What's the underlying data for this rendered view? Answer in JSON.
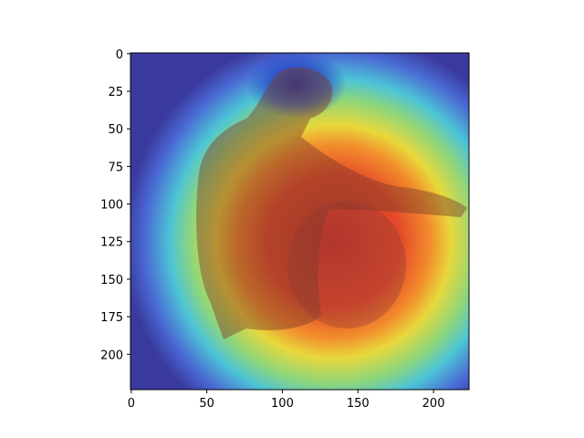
{
  "figure": {
    "background": "#ffffff",
    "image_description_colors": {
      "colormap": "jet",
      "hot": "#e0341c",
      "cold": "#1f1fb4"
    }
  },
  "axes": {
    "x_ticks": [
      "0",
      "50",
      "100",
      "150",
      "200"
    ],
    "y_ticks": [
      "0",
      "25",
      "50",
      "75",
      "100",
      "125",
      "150",
      "175",
      "200"
    ],
    "x_tick_values": [
      0,
      50,
      100,
      150,
      200
    ],
    "y_tick_values": [
      0,
      25,
      50,
      75,
      100,
      125,
      150,
      175,
      200
    ],
    "xlim": [
      -0.5,
      223.5
    ],
    "ylim": [
      223.5,
      -0.5
    ]
  }
}
